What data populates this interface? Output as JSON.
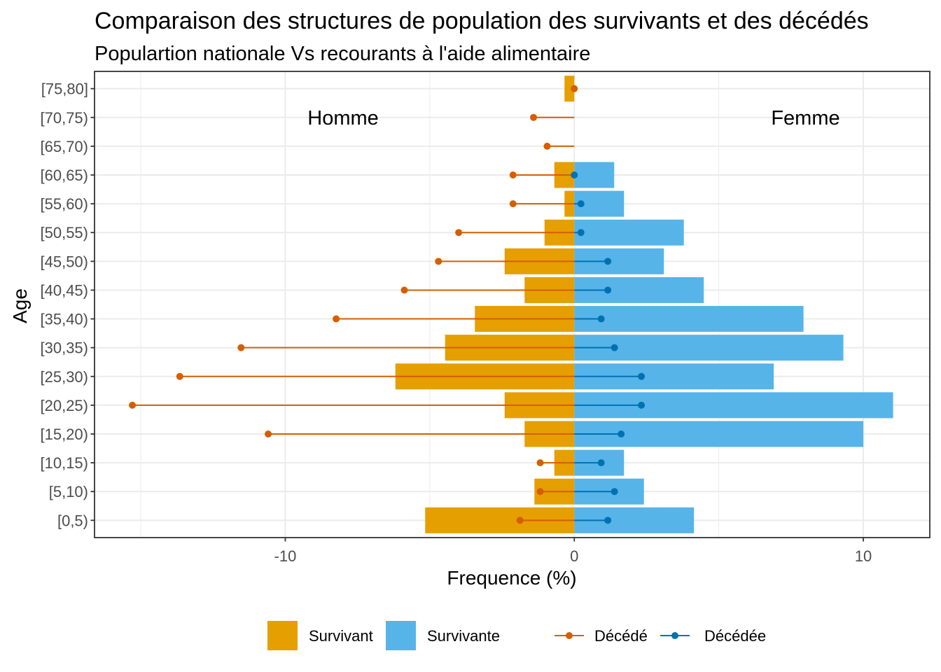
{
  "chart_data": {
    "type": "bar",
    "orientation": "horizontal",
    "title": "Comparaison des structures de population des survivants et des décédés",
    "subtitle": "Populartion nationale Vs recourants à l'aide alimentaire",
    "xlabel": "Frequence (%)",
    "ylabel": "Age",
    "xlim": [
      -16.6,
      12.3
    ],
    "xticks": [
      -10,
      0,
      10
    ],
    "categories": [
      "[0,5)",
      "[5,10)",
      "[10,15)",
      "[15,20)",
      "[20,25)",
      "[25,30)",
      "[30,35)",
      "[35,40)",
      "[40,45)",
      "[45,50)",
      "[50,55)",
      "[55,60)",
      "[60,65)",
      "[65,70)",
      "[70,75)",
      "[75,80]"
    ],
    "series": [
      {
        "name": "Survivant",
        "type": "bar",
        "color": "#E69F00",
        "values": [
          -5.16,
          -1.38,
          -0.69,
          -1.72,
          -2.41,
          -6.19,
          -4.47,
          -3.44,
          -1.72,
          -2.41,
          -1.03,
          -0.34,
          -0.69,
          0,
          0,
          -0.34
        ]
      },
      {
        "name": "Survivante",
        "type": "bar",
        "color": "#56B4E9",
        "values": [
          4.14,
          2.41,
          1.72,
          10.0,
          11.03,
          6.9,
          9.31,
          7.93,
          4.48,
          3.1,
          3.79,
          1.72,
          1.38,
          0,
          0,
          0
        ]
      },
      {
        "name": "Décédé",
        "type": "lollipop",
        "color": "#D55E00",
        "values": [
          -1.88,
          -1.18,
          -1.18,
          -10.59,
          -15.29,
          -13.65,
          -11.53,
          -8.24,
          -5.88,
          -4.7,
          -4.0,
          -2.12,
          -2.12,
          -0.94,
          -1.41,
          0
        ]
      },
      {
        "name": "Décédée",
        "type": "lollipop",
        "color": "#0072B2",
        "values": [
          1.16,
          1.39,
          0.93,
          1.62,
          2.32,
          2.32,
          1.39,
          0.93,
          1.16,
          1.16,
          0.23,
          0.23,
          0,
          null,
          null,
          null
        ]
      }
    ],
    "annotations": [
      {
        "label": "Homme",
        "x": -8,
        "y": "[70,75)"
      },
      {
        "label": "Femme",
        "x": 8,
        "y": "[70,75)"
      }
    ],
    "grid": true,
    "legend_position": "bottom"
  }
}
